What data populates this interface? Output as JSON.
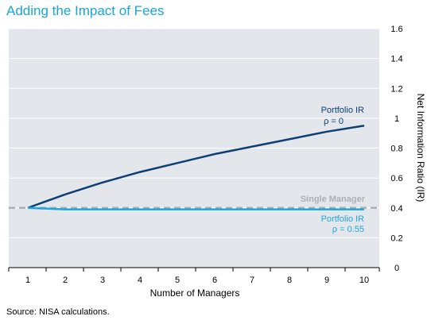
{
  "title": "Adding the Impact of Fees",
  "source": "Source: NISA calculations.",
  "colors": {
    "title": "#1aa5d6",
    "plot_bg": "#e3e7ec",
    "series_rho0": "#0d3f76",
    "series_rho055": "#1ca6db",
    "single_manager": "#a9b0b8"
  },
  "chart_data": {
    "type": "line",
    "xlabel": "Number of Managers",
    "ylabel": "Net Information Ratio (IR)",
    "x": [
      1,
      2,
      3,
      4,
      5,
      6,
      7,
      8,
      9,
      10
    ],
    "ylim": [
      0,
      1.6
    ],
    "yticks": [
      "0",
      "0.2",
      "0.4",
      "0.6",
      "0.8",
      "1",
      "1.2",
      "1.4",
      "1.6"
    ],
    "grid": true,
    "series": [
      {
        "values": [
          0.4,
          0.49,
          0.57,
          0.64,
          0.7,
          0.76,
          0.81,
          0.86,
          0.91,
          0.95
        ],
        "label_line1": "Portfolio IR",
        "label_line2": "ρ = 0"
      },
      {
        "values": [
          0.4,
          0.39,
          0.39,
          0.39,
          0.39,
          0.39,
          0.39,
          0.39,
          0.39,
          0.39
        ],
        "label_line1": "Portfolio IR",
        "label_line2": "ρ = 0.55"
      }
    ],
    "reference": {
      "name": "Single Manager",
      "value": 0.4
    }
  }
}
